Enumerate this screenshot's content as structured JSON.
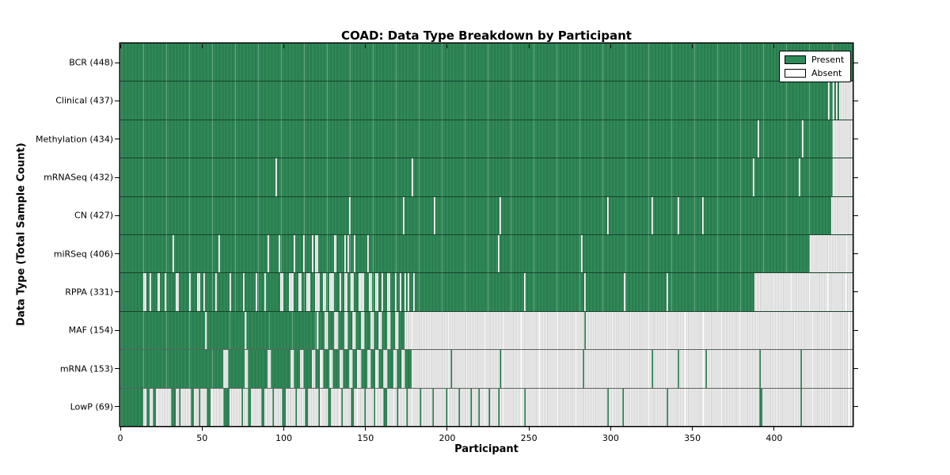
{
  "chart": {
    "title": "COAD: Data Type Breakdown by Participant",
    "xlabel": "Participant",
    "ylabel": "Data Type (Total Sample Count)",
    "legend": {
      "items": [
        {
          "label": "Present",
          "swatch": "present"
        },
        {
          "label": "Absent",
          "swatch": "absent"
        }
      ]
    },
    "colors": {
      "present": "#2e8b57",
      "present_dark": "#2a7c4f",
      "absent": "#d2d2d2",
      "absent_light": "#ffffff",
      "axis": "#000000",
      "background": "#ffffff"
    }
  },
  "chart_data": {
    "type": "heatmap",
    "x_max": 448,
    "x_ticks": [
      0,
      50,
      100,
      150,
      200,
      250,
      300,
      350,
      400
    ],
    "value_legend": {
      "present": "Present",
      "absent": "Absent"
    },
    "rows": [
      {
        "label": "BCR (448)",
        "name": "BCR",
        "count": 448,
        "mode": "absent",
        "ranges": []
      },
      {
        "label": "Clinical (437)",
        "name": "Clinical",
        "count": 437,
        "mode": "absent",
        "ranges": [
          [
            433,
            433
          ],
          [
            436,
            436
          ],
          [
            438,
            438
          ],
          [
            440,
            447
          ]
        ]
      },
      {
        "label": "Methylation (434)",
        "name": "Methylation",
        "count": 434,
        "mode": "absent",
        "ranges": [
          [
            390,
            390
          ],
          [
            417,
            417
          ],
          [
            436,
            447
          ]
        ]
      },
      {
        "label": "mRNASeq (432)",
        "name": "mRNASeq",
        "count": 432,
        "mode": "absent",
        "ranges": [
          [
            95,
            95
          ],
          [
            178,
            178
          ],
          [
            387,
            387
          ],
          [
            415,
            415
          ],
          [
            436,
            447
          ]
        ]
      },
      {
        "label": "CN (427)",
        "name": "CN",
        "count": 427,
        "mode": "absent",
        "ranges": [
          [
            140,
            140
          ],
          [
            173,
            173
          ],
          [
            192,
            192
          ],
          [
            232,
            232
          ],
          [
            298,
            298
          ],
          [
            325,
            325
          ],
          [
            341,
            341
          ],
          [
            356,
            356
          ],
          [
            435,
            447
          ]
        ]
      },
      {
        "label": "miRSeq (406)",
        "name": "miRSeq",
        "count": 406,
        "mode": "absent",
        "ranges": [
          [
            32,
            32
          ],
          [
            60,
            60
          ],
          [
            90,
            90
          ],
          [
            97,
            97
          ],
          [
            106,
            106
          ],
          [
            112,
            112
          ],
          [
            117,
            117
          ],
          [
            119,
            120
          ],
          [
            131,
            131
          ],
          [
            137,
            137
          ],
          [
            139,
            139
          ],
          [
            143,
            143
          ],
          [
            151,
            151
          ],
          [
            231,
            231
          ],
          [
            282,
            282
          ],
          [
            422,
            447
          ]
        ]
      },
      {
        "label": "RPPA (331)",
        "name": "RPPA",
        "count": 331,
        "mode": "absent",
        "ranges": [
          [
            14,
            15
          ],
          [
            18,
            18
          ],
          [
            23,
            23
          ],
          [
            27,
            27
          ],
          [
            34,
            35
          ],
          [
            42,
            42
          ],
          [
            47,
            48
          ],
          [
            51,
            51
          ],
          [
            58,
            58
          ],
          [
            67,
            67
          ],
          [
            75,
            75
          ],
          [
            83,
            83
          ],
          [
            88,
            88
          ],
          [
            98,
            99
          ],
          [
            103,
            105
          ],
          [
            109,
            110
          ],
          [
            114,
            115
          ],
          [
            119,
            121
          ],
          [
            124,
            125
          ],
          [
            128,
            130
          ],
          [
            134,
            134
          ],
          [
            137,
            138
          ],
          [
            141,
            142
          ],
          [
            146,
            148
          ],
          [
            152,
            153
          ],
          [
            156,
            157
          ],
          [
            160,
            160
          ],
          [
            163,
            164
          ],
          [
            168,
            168
          ],
          [
            171,
            171
          ],
          [
            174,
            174
          ],
          [
            176,
            176
          ],
          [
            179,
            179
          ],
          [
            247,
            247
          ],
          [
            284,
            284
          ],
          [
            308,
            308
          ],
          [
            334,
            334
          ],
          [
            388,
            447
          ]
        ]
      },
      {
        "label": "MAF (154)",
        "name": "MAF",
        "count": 154,
        "mode": "present",
        "ranges": [
          [
            0,
            51
          ],
          [
            53,
            75
          ],
          [
            77,
            119
          ],
          [
            121,
            124
          ],
          [
            127,
            130
          ],
          [
            133,
            136
          ],
          [
            139,
            141
          ],
          [
            144,
            146
          ],
          [
            149,
            152
          ],
          [
            155,
            157
          ],
          [
            160,
            162
          ],
          [
            165,
            167
          ],
          [
            170,
            173
          ],
          [
            284,
            284
          ]
        ]
      },
      {
        "label": "mRNA (153)",
        "name": "mRNA",
        "count": 153,
        "mode": "present",
        "ranges": [
          [
            0,
            62
          ],
          [
            66,
            75
          ],
          [
            78,
            89
          ],
          [
            92,
            103
          ],
          [
            106,
            109
          ],
          [
            112,
            116
          ],
          [
            119,
            121
          ],
          [
            124,
            127
          ],
          [
            130,
            133
          ],
          [
            136,
            139
          ],
          [
            142,
            144
          ],
          [
            147,
            150
          ],
          [
            153,
            155
          ],
          [
            158,
            160
          ],
          [
            163,
            166
          ],
          [
            169,
            171
          ],
          [
            174,
            177
          ],
          [
            202,
            202
          ],
          [
            232,
            232
          ],
          [
            283,
            283
          ],
          [
            325,
            325
          ],
          [
            341,
            341
          ],
          [
            358,
            358
          ],
          [
            391,
            391
          ],
          [
            416,
            416
          ]
        ]
      },
      {
        "label": "LowP (69)",
        "name": "LowP",
        "count": 69,
        "mode": "present",
        "ranges": [
          [
            0,
            13
          ],
          [
            16,
            17
          ],
          [
            20,
            21
          ],
          [
            31,
            33
          ],
          [
            36,
            36
          ],
          [
            43,
            44
          ],
          [
            48,
            48
          ],
          [
            53,
            54
          ],
          [
            63,
            66
          ],
          [
            74,
            74
          ],
          [
            78,
            79
          ],
          [
            86,
            87
          ],
          [
            93,
            93
          ],
          [
            99,
            100
          ],
          [
            107,
            107
          ],
          [
            113,
            114
          ],
          [
            121,
            121
          ],
          [
            127,
            128
          ],
          [
            135,
            135
          ],
          [
            141,
            142
          ],
          [
            149,
            149
          ],
          [
            155,
            155
          ],
          [
            161,
            162
          ],
          [
            169,
            169
          ],
          [
            175,
            175
          ],
          [
            183,
            183
          ],
          [
            191,
            191
          ],
          [
            199,
            199
          ],
          [
            207,
            207
          ],
          [
            214,
            214
          ],
          [
            219,
            219
          ],
          [
            225,
            225
          ],
          [
            231,
            231
          ],
          [
            247,
            247
          ],
          [
            298,
            298
          ],
          [
            307,
            307
          ],
          [
            334,
            334
          ],
          [
            391,
            392
          ],
          [
            416,
            416
          ]
        ]
      }
    ]
  }
}
